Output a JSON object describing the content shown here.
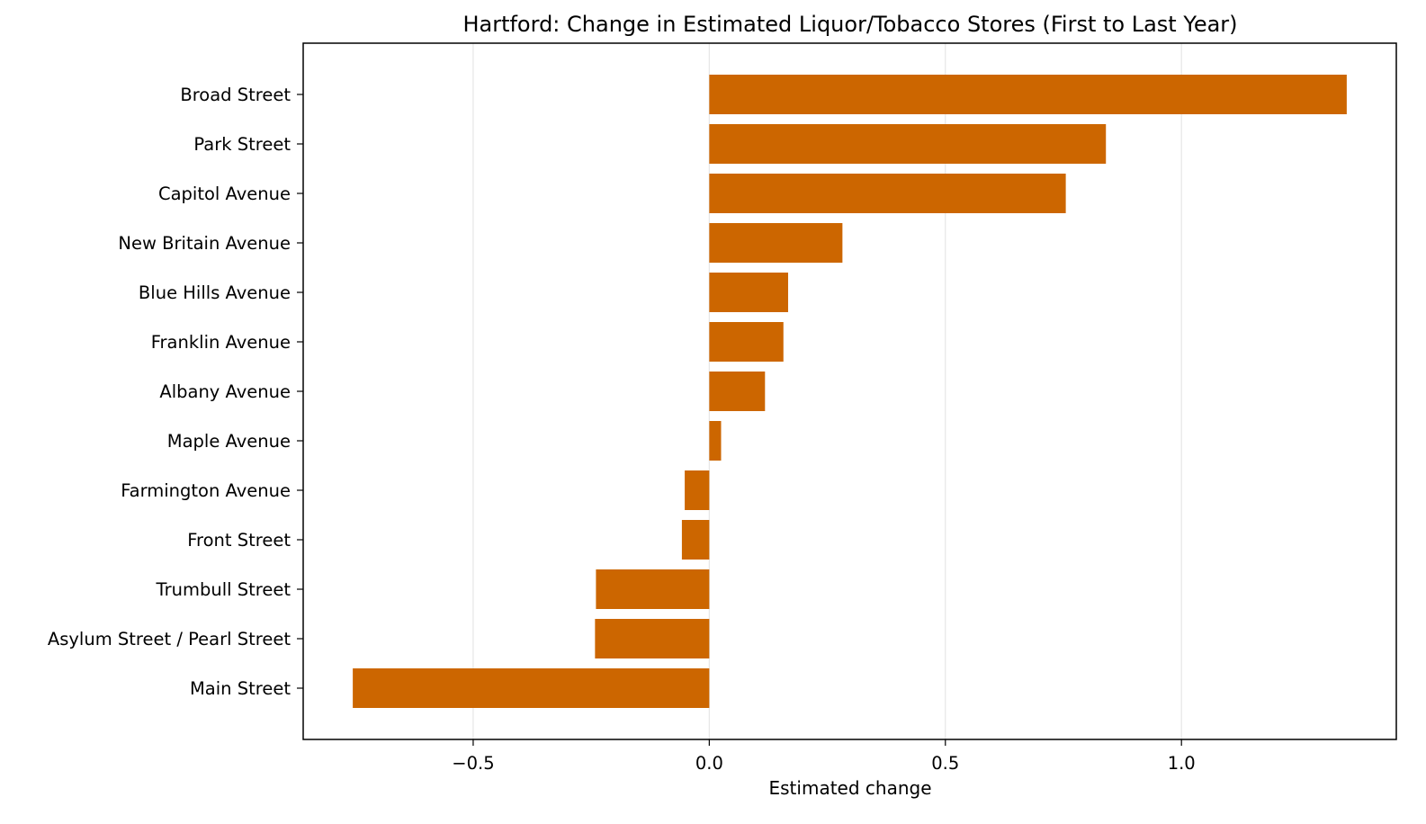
{
  "chart_data": {
    "type": "bar",
    "orientation": "horizontal",
    "title": "Hartford: Change in Estimated Liquor/Tobacco Stores (First to Last Year)",
    "xlabel": "Estimated change",
    "ylabel": "",
    "categories": [
      "Broad Street",
      "Park Street",
      "Capitol Avenue",
      "New Britain Avenue",
      "Blue Hills Avenue",
      "Franklin Avenue",
      "Albany Avenue",
      "Maple Avenue",
      "Farmington Avenue",
      "Front Street",
      "Trumbull Street",
      "Asylum Street / Pearl Street",
      "Main Street"
    ],
    "values": [
      1.35,
      0.84,
      0.755,
      0.282,
      0.167,
      0.157,
      0.118,
      0.025,
      -0.052,
      -0.058,
      -0.24,
      -0.242,
      -0.755
    ],
    "xlim": [
      -0.86,
      1.455
    ],
    "xticks": [
      -0.5,
      0.0,
      0.5,
      1.0
    ],
    "xtick_labels": [
      "−0.5",
      "0.0",
      "0.5",
      "1.0"
    ],
    "grid": "x",
    "legend": "none",
    "bar_color": "#cc6600"
  }
}
